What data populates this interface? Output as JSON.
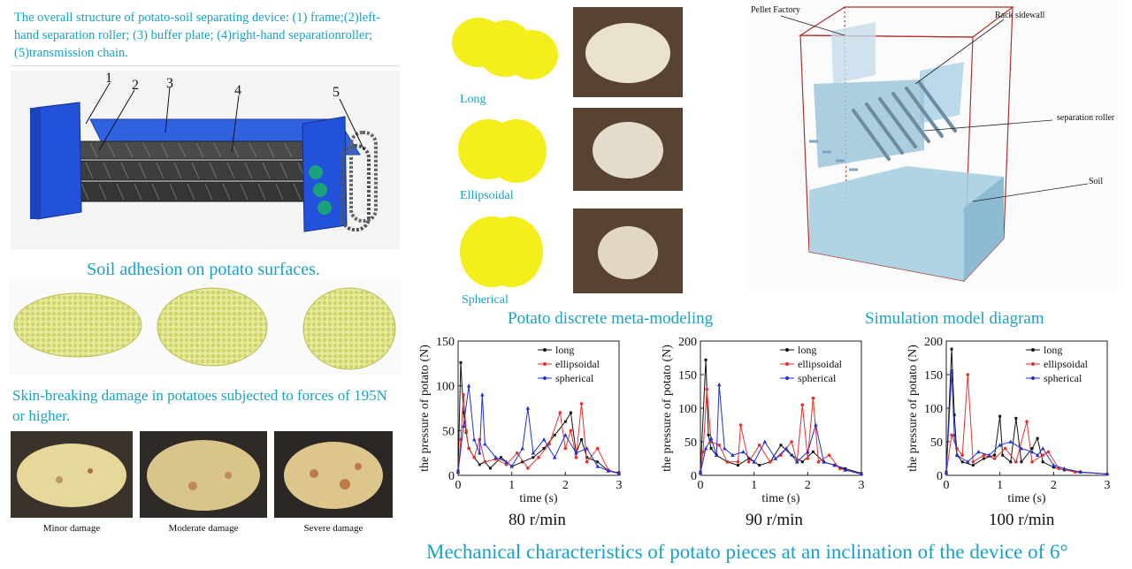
{
  "structure": {
    "caption": "The overall structure of potato-soil separating device: (1) frame;(2)left-hand separation roller; (3) buffer plate; (4)right-hand separationroller; (5)transmission chain.",
    "part_numbers": [
      "1",
      "2",
      "3",
      "4",
      "5"
    ]
  },
  "adhesion": {
    "title": "Soil adhesion on potato surfaces."
  },
  "damage": {
    "caption": "Skin-breaking damage in potatoes subjected to forces of 195N or higher.",
    "labels": [
      "Minor damage",
      "Moderate damage",
      "Severe damage"
    ]
  },
  "shapes": {
    "labels": [
      "Long",
      "Ellipsoidal",
      "Spherical"
    ],
    "caption": "Potato discrete meta-modeling"
  },
  "simulation": {
    "labels": [
      "Pellet Factory",
      "Rack sidewall",
      "separation roller",
      "Soil"
    ],
    "caption": "Simulation model diagram"
  },
  "charts_caption": "Mechanical characteristics of potato pieces at an inclination of the device of 6°",
  "colors": {
    "caption": "#17a2c8",
    "long": "#111111",
    "ellipsoidal": "#e8302a",
    "spherical": "#1f2fd6",
    "potato_model": "#f4ee1c",
    "frame_blue": "#1f4fd6"
  },
  "chart_data": [
    {
      "type": "line",
      "title": "80 r/min",
      "xlabel": "time (s)",
      "ylabel": "the pressure of potato (N)",
      "xlim": [
        0,
        3
      ],
      "ylim": [
        0,
        150
      ],
      "xticks": [
        0,
        1,
        2,
        3
      ],
      "yticks": [
        0,
        50,
        100,
        150
      ],
      "legend": "top-right",
      "series": [
        {
          "name": "long",
          "values": [
            [
              0,
              5
            ],
            [
              0.05,
              126
            ],
            [
              0.1,
              70
            ],
            [
              0.15,
              48
            ],
            [
              0.2,
              30
            ],
            [
              0.3,
              20
            ],
            [
              0.4,
              12
            ],
            [
              0.5,
              15
            ],
            [
              0.6,
              8
            ],
            [
              0.8,
              20
            ],
            [
              1.0,
              10
            ],
            [
              1.2,
              15
            ],
            [
              1.4,
              20
            ],
            [
              1.6,
              30
            ],
            [
              1.8,
              45
            ],
            [
              2.0,
              60
            ],
            [
              2.1,
              70
            ],
            [
              2.2,
              25
            ],
            [
              2.3,
              40
            ],
            [
              2.4,
              20
            ],
            [
              2.6,
              15
            ],
            [
              2.8,
              5
            ],
            [
              3.0,
              3
            ]
          ]
        },
        {
          "name": "ellipsoidal",
          "values": [
            [
              0,
              3
            ],
            [
              0.05,
              40
            ],
            [
              0.1,
              90
            ],
            [
              0.15,
              50
            ],
            [
              0.2,
              30
            ],
            [
              0.3,
              20
            ],
            [
              0.4,
              40
            ],
            [
              0.5,
              15
            ],
            [
              0.7,
              18
            ],
            [
              0.9,
              12
            ],
            [
              1.1,
              25
            ],
            [
              1.3,
              8
            ],
            [
              1.5,
              20
            ],
            [
              1.7,
              35
            ],
            [
              1.9,
              70
            ],
            [
              2.0,
              30
            ],
            [
              2.1,
              50
            ],
            [
              2.2,
              20
            ],
            [
              2.3,
              80
            ],
            [
              2.4,
              15
            ],
            [
              2.6,
              30
            ],
            [
              2.8,
              6
            ],
            [
              3.0,
              2
            ]
          ]
        },
        {
          "name": "spherical",
          "values": [
            [
              0,
              4
            ],
            [
              0.1,
              55
            ],
            [
              0.2,
              100
            ],
            [
              0.3,
              40
            ],
            [
              0.4,
              25
            ],
            [
              0.45,
              90
            ],
            [
              0.5,
              35
            ],
            [
              0.7,
              20
            ],
            [
              0.9,
              15
            ],
            [
              1.0,
              10
            ],
            [
              1.2,
              30
            ],
            [
              1.3,
              75
            ],
            [
              1.4,
              25
            ],
            [
              1.6,
              40
            ],
            [
              1.8,
              20
            ],
            [
              2.0,
              45
            ],
            [
              2.2,
              25
            ],
            [
              2.4,
              30
            ],
            [
              2.6,
              10
            ],
            [
              2.8,
              5
            ],
            [
              3.0,
              2
            ]
          ]
        }
      ]
    },
    {
      "type": "line",
      "title": "90 r/min",
      "xlabel": "time (s)",
      "ylabel": "the pressure of potato (N)",
      "xlim": [
        0,
        3
      ],
      "ylim": [
        0,
        200
      ],
      "xticks": [
        0,
        1,
        2,
        3
      ],
      "yticks": [
        0,
        50,
        100,
        150,
        200
      ],
      "legend": "top-right",
      "series": [
        {
          "name": "long",
          "values": [
            [
              0,
              5
            ],
            [
              0.1,
              172
            ],
            [
              0.15,
              60
            ],
            [
              0.2,
              40
            ],
            [
              0.3,
              30
            ],
            [
              0.5,
              20
            ],
            [
              0.7,
              15
            ],
            [
              0.9,
              25
            ],
            [
              1.1,
              15
            ],
            [
              1.3,
              20
            ],
            [
              1.5,
              45
            ],
            [
              1.7,
              30
            ],
            [
              1.9,
              20
            ],
            [
              2.1,
              35
            ],
            [
              2.3,
              20
            ],
            [
              2.5,
              15
            ],
            [
              2.7,
              10
            ],
            [
              3.0,
              3
            ]
          ]
        },
        {
          "name": "ellipsoidal",
          "values": [
            [
              0,
              3
            ],
            [
              0.05,
              35
            ],
            [
              0.12,
              128
            ],
            [
              0.2,
              50
            ],
            [
              0.35,
              45
            ],
            [
              0.5,
              20
            ],
            [
              0.7,
              20
            ],
            [
              0.75,
              75
            ],
            [
              0.9,
              20
            ],
            [
              1.1,
              45
            ],
            [
              1.3,
              20
            ],
            [
              1.5,
              30
            ],
            [
              1.7,
              50
            ],
            [
              1.8,
              20
            ],
            [
              1.9,
              105
            ],
            [
              2.0,
              25
            ],
            [
              2.1,
              115
            ],
            [
              2.2,
              20
            ],
            [
              2.4,
              30
            ],
            [
              2.6,
              10
            ],
            [
              3.0,
              2
            ]
          ]
        },
        {
          "name": "spherical",
          "values": [
            [
              0,
              4
            ],
            [
              0.1,
              40
            ],
            [
              0.2,
              55
            ],
            [
              0.3,
              30
            ],
            [
              0.35,
              135
            ],
            [
              0.45,
              40
            ],
            [
              0.6,
              30
            ],
            [
              0.8,
              35
            ],
            [
              1.0,
              20
            ],
            [
              1.2,
              50
            ],
            [
              1.4,
              25
            ],
            [
              1.6,
              40
            ],
            [
              1.8,
              20
            ],
            [
              2.0,
              35
            ],
            [
              2.15,
              75
            ],
            [
              2.3,
              20
            ],
            [
              2.5,
              15
            ],
            [
              2.7,
              8
            ],
            [
              3.0,
              2
            ]
          ]
        }
      ]
    },
    {
      "type": "line",
      "title": "100 r/min",
      "xlabel": "time (s)",
      "ylabel": "the pressure of potato (N)",
      "xlim": [
        0,
        3
      ],
      "ylim": [
        0,
        200
      ],
      "xticks": [
        0,
        1,
        2,
        3
      ],
      "yticks": [
        0,
        50,
        100,
        150,
        200
      ],
      "legend": "top-right",
      "series": [
        {
          "name": "long",
          "values": [
            [
              0,
              5
            ],
            [
              0.1,
              188
            ],
            [
              0.15,
              90
            ],
            [
              0.2,
              30
            ],
            [
              0.3,
              20
            ],
            [
              0.5,
              15
            ],
            [
              0.7,
              25
            ],
            [
              0.9,
              30
            ],
            [
              1.0,
              88
            ],
            [
              1.05,
              30
            ],
            [
              1.2,
              20
            ],
            [
              1.3,
              85
            ],
            [
              1.4,
              20
            ],
            [
              1.6,
              40
            ],
            [
              1.7,
              55
            ],
            [
              1.8,
              20
            ],
            [
              2.0,
              12
            ],
            [
              2.2,
              8
            ],
            [
              2.5,
              5
            ],
            [
              3.0,
              2
            ]
          ]
        },
        {
          "name": "ellipsoidal",
          "values": [
            [
              0,
              3
            ],
            [
              0.1,
              60
            ],
            [
              0.2,
              40
            ],
            [
              0.3,
              30
            ],
            [
              0.4,
              150
            ],
            [
              0.5,
              20
            ],
            [
              0.7,
              30
            ],
            [
              0.9,
              25
            ],
            [
              1.1,
              40
            ],
            [
              1.3,
              20
            ],
            [
              1.5,
              80
            ],
            [
              1.6,
              20
            ],
            [
              1.8,
              30
            ],
            [
              1.9,
              35
            ],
            [
              2.1,
              10
            ],
            [
              2.4,
              5
            ],
            [
              3.0,
              2
            ]
          ]
        },
        {
          "name": "spherical",
          "values": [
            [
              0,
              4
            ],
            [
              0.1,
              155
            ],
            [
              0.15,
              60
            ],
            [
              0.2,
              30
            ],
            [
              0.4,
              20
            ],
            [
              0.6,
              35
            ],
            [
              0.8,
              30
            ],
            [
              1.0,
              45
            ],
            [
              1.2,
              50
            ],
            [
              1.4,
              40
            ],
            [
              1.6,
              35
            ],
            [
              1.7,
              30
            ],
            [
              1.8,
              40
            ],
            [
              2.0,
              15
            ],
            [
              2.2,
              10
            ],
            [
              2.5,
              5
            ],
            [
              3.0,
              2
            ]
          ]
        }
      ]
    }
  ]
}
